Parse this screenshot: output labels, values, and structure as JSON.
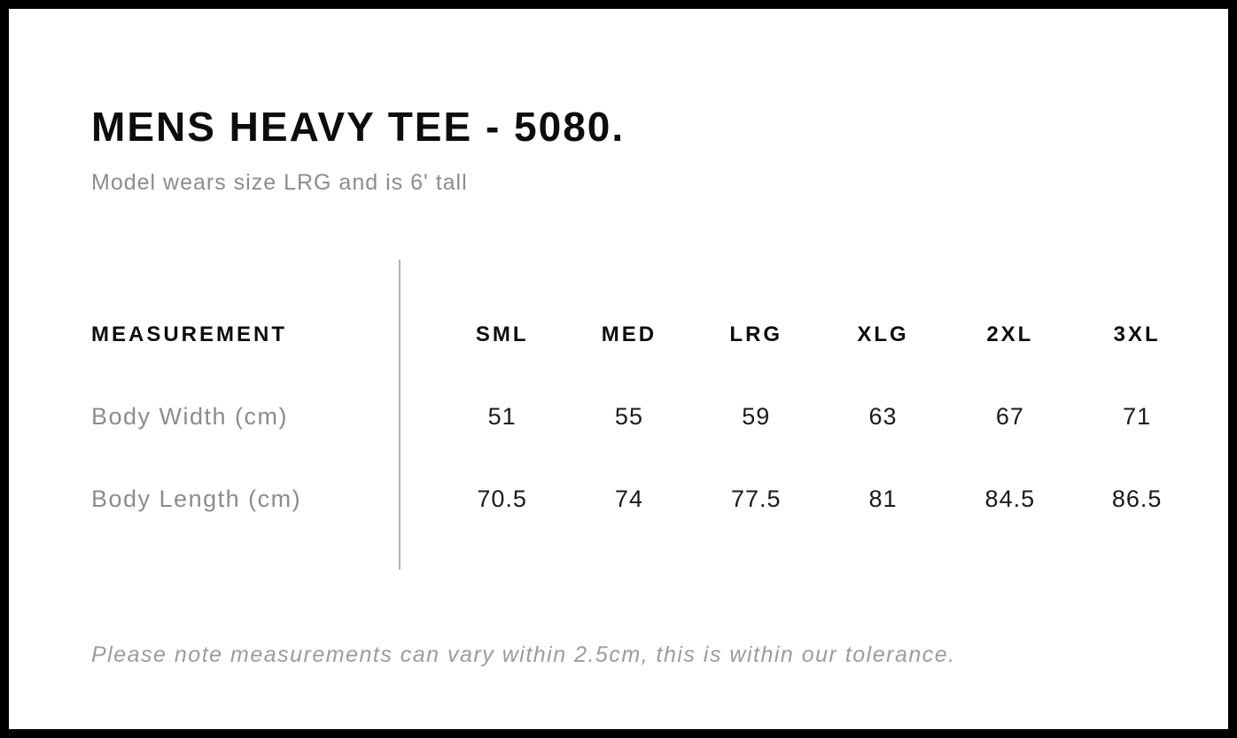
{
  "page": {
    "title": "MENS HEAVY TEE - 5080.",
    "subtitle": "Model wears size LRG and is 6' tall",
    "footnote": "Please note measurements can vary within 2.5cm, this is within our tolerance."
  },
  "size_chart": {
    "measurement_header": "MEASUREMENT",
    "sizes": [
      "SML",
      "MED",
      "LRG",
      "XLG",
      "2XL",
      "3XL"
    ],
    "rows": [
      {
        "label": "Body Width (cm)",
        "values": [
          "51",
          "55",
          "59",
          "63",
          "67",
          "71"
        ]
      },
      {
        "label": "Body Length (cm)",
        "values": [
          "70.5",
          "74",
          "77.5",
          "81",
          "84.5",
          "86.5"
        ]
      }
    ],
    "tolerance_cm": "2.5"
  },
  "colors": {
    "frame_border": "#000000",
    "background": "#ffffff",
    "title_text": "#0d0d0d",
    "muted_text": "#8c8c8c",
    "footnote_text": "#9c9c9c",
    "divider": "#b3b3b3",
    "value_text": "#1a1a1a"
  }
}
